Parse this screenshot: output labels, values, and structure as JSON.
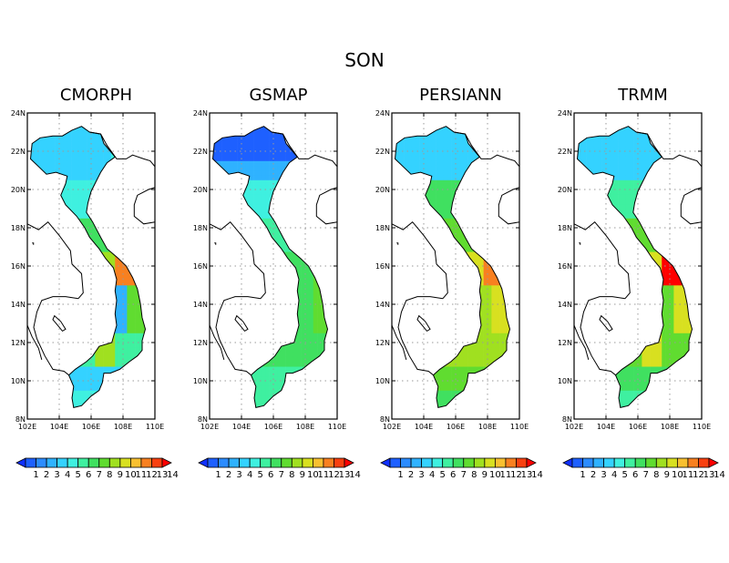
{
  "title": "SON",
  "panels": [
    {
      "name": "CMORPH"
    },
    {
      "name": "GSMAP"
    },
    {
      "name": "PERSIANN"
    },
    {
      "name": "TRMM"
    }
  ],
  "axes": {
    "lat_labels": [
      "24N",
      "22N",
      "20N",
      "18N",
      "16N",
      "14N",
      "12N",
      "10N",
      "8N"
    ],
    "lon_labels": [
      "102E",
      "104E",
      "106E",
      "108E",
      "110E"
    ],
    "lat_range": [
      8,
      24
    ],
    "lon_range": [
      102,
      110
    ],
    "grid": "dotted"
  },
  "colorbar": {
    "labels": [
      "1",
      "2",
      "3",
      "4",
      "5",
      "6",
      "7",
      "8",
      "9",
      "10",
      "11",
      "12",
      "13",
      "14"
    ],
    "colors": [
      "#1030ff",
      "#1e60ff",
      "#2c8cff",
      "#2fb2ff",
      "#34d2ff",
      "#3ff0e0",
      "#3ff0a0",
      "#40e060",
      "#60dc30",
      "#a0e020",
      "#d8e020",
      "#f8c030",
      "#f88020",
      "#f84010",
      "#ff0000"
    ],
    "extend": "both"
  },
  "colors": {
    "coast_line": "#000000",
    "grid": "#9a9a9a",
    "low_precip_north": "#3aaeff",
    "mid_precip": "#40e070",
    "high_precip": "#ff2010"
  }
}
